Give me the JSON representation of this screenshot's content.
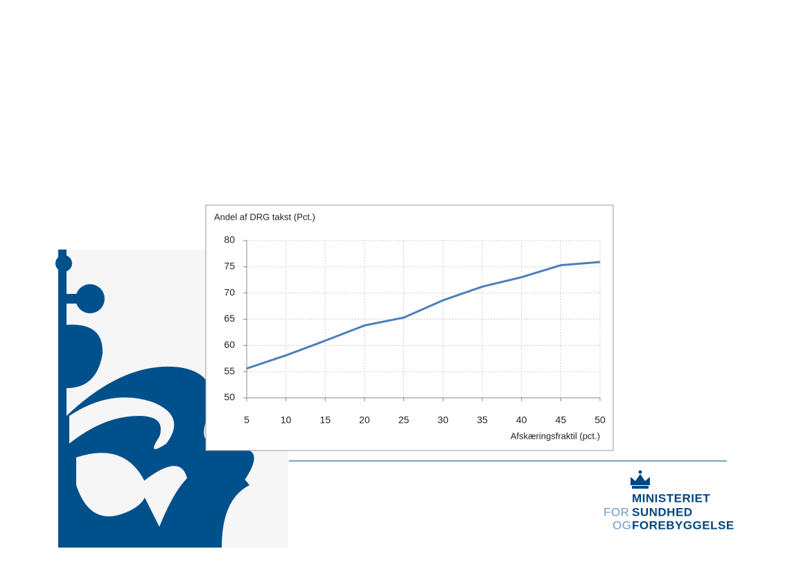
{
  "chart_data": {
    "type": "line",
    "ylabel": "Andel af DRG takst (Pct.)",
    "xlabel": "Afskæringsfraktil (pct.)",
    "x": [
      5,
      10,
      15,
      20,
      25,
      30,
      35,
      40,
      45,
      50
    ],
    "series": [
      {
        "color": "#4a7ebb",
        "values": [
          55.6,
          58.1,
          60.9,
          63.8,
          65.3,
          68.6,
          71.2,
          73.0,
          75.3,
          75.9
        ]
      }
    ],
    "xlim": [
      5,
      50
    ],
    "xticks": [
      5,
      10,
      15,
      20,
      25,
      30,
      35,
      40,
      45,
      50
    ],
    "ylim": [
      50,
      80
    ],
    "yticks": [
      50,
      55,
      60,
      65,
      70,
      75,
      80
    ],
    "grid": true
  },
  "logo": {
    "line1": "MINISTERIET",
    "prefix2": "FOR",
    "line2": "SUNDHED",
    "prefix3": "OG",
    "line3": "FOREBYGGELSE"
  }
}
